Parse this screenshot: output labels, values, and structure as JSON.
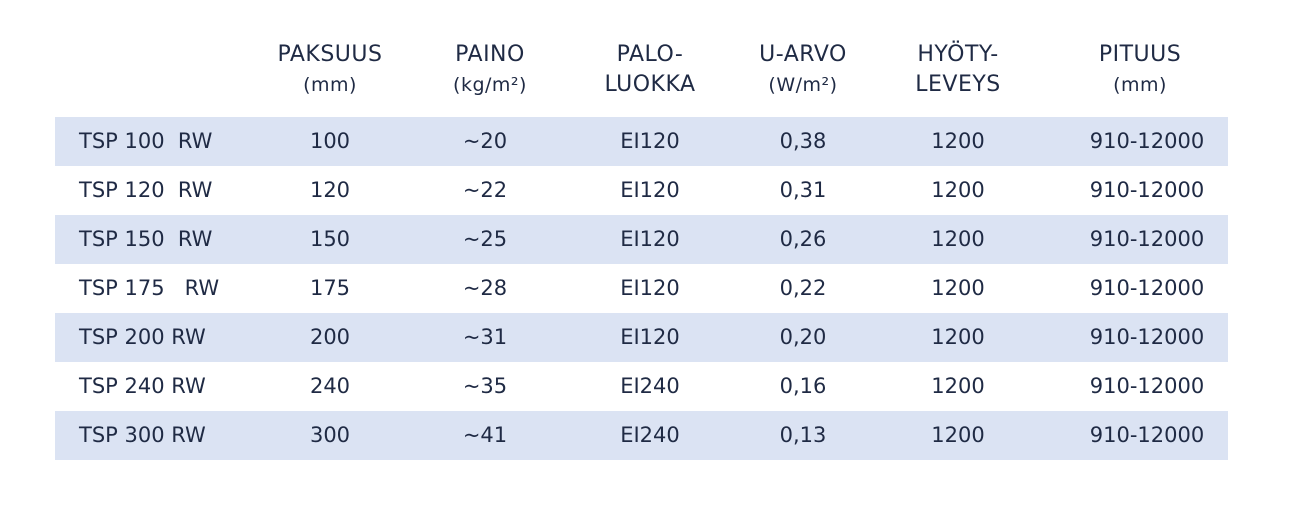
{
  "table": {
    "headers": [
      {
        "main": "PAKSUUS",
        "sub": "(mm)"
      },
      {
        "main": "PAINO",
        "sub": "(kg/m²)"
      },
      {
        "main": "PALO-",
        "sub": "LUOKKA"
      },
      {
        "main": "U-ARVO",
        "sub": "(W/m²)"
      },
      {
        "main": "HYÖTY-",
        "sub": "LEVEYS"
      },
      {
        "main": "PITUUS",
        "sub": "(mm)"
      }
    ],
    "rows": [
      [
        "TSP 100  RW",
        "100",
        "~20",
        "EI120",
        "0,38",
        "1200",
        "910-12000"
      ],
      [
        "TSP 120  RW",
        "120",
        "~22",
        "EI120",
        "0,31",
        "1200",
        "910-12000"
      ],
      [
        "TSP 150  RW",
        "150",
        "~25",
        "EI120",
        "0,26",
        "1200",
        "910-12000"
      ],
      [
        "TSP 175   RW",
        "175",
        "~28",
        "EI120",
        "0,22",
        "1200",
        "910-12000"
      ],
      [
        "TSP 200 RW",
        "200",
        "~31",
        "EI120",
        "0,20",
        "1200",
        "910-12000"
      ],
      [
        "TSP 240 RW",
        "240",
        "~35",
        "EI240",
        "0,16",
        "1200",
        "910-12000"
      ],
      [
        "TSP 300 RW",
        "300",
        "~41",
        "EI240",
        "0,13",
        "1200",
        "910-12000"
      ]
    ]
  },
  "colors": {
    "row_stripe": "#dbe3f3",
    "text": "#1f2a44"
  }
}
